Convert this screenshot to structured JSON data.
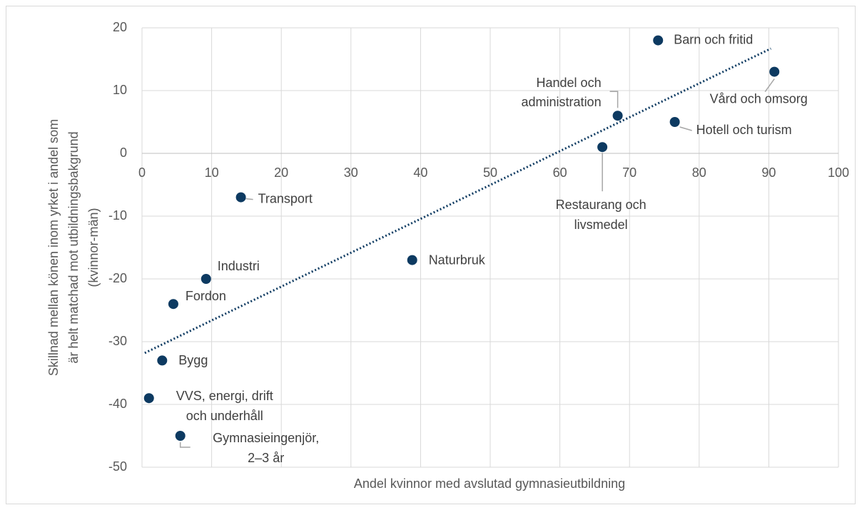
{
  "chart_data": {
    "type": "scatter",
    "x_label": "Andel kvinnor med avslutad gymnasieutbildning",
    "y_label": [
      "Skillnad mellan könen  inom yrket i andel som",
      "är helt matchad mot utbildningsbakgrund",
      "(kvinnor-män)"
    ],
    "x": [
      74.1,
      90.8,
      68.3,
      76.5,
      66.1,
      14.2,
      38.8,
      9.2,
      4.5,
      2.9,
      1.0,
      5.5
    ],
    "y": [
      18,
      13,
      6,
      5,
      1,
      -7,
      -17,
      -20,
      -24,
      -33,
      -39,
      -45
    ],
    "labels": [
      [
        "Barn och fritid"
      ],
      [
        "Vård och omsorg"
      ],
      [
        "Handel och",
        "administration"
      ],
      [
        "Hotell och turism"
      ],
      [
        "Restaurang och",
        "livsmedel"
      ],
      [
        "Transport"
      ],
      [
        "Naturbruk"
      ],
      [
        "Industri"
      ],
      [
        "Fordon"
      ],
      [
        "Bygg"
      ],
      [
        "VVS, energi, drift",
        "och underhåll"
      ],
      [
        "Gymnasieingenjör,",
        "2–3 år"
      ]
    ],
    "color": "#0d3a61",
    "trendline": {
      "x": [
        0.4,
        90.3
      ],
      "y": [
        -31.8,
        16.7
      ]
    },
    "xlim": [
      0,
      100
    ],
    "ylim": [
      -50,
      20
    ],
    "xticks": [
      0,
      10,
      20,
      30,
      40,
      50,
      60,
      70,
      80,
      90,
      100
    ],
    "yticks": [
      -50,
      -40,
      -30,
      -20,
      -10,
      0,
      10,
      20
    ],
    "grid": true
  }
}
